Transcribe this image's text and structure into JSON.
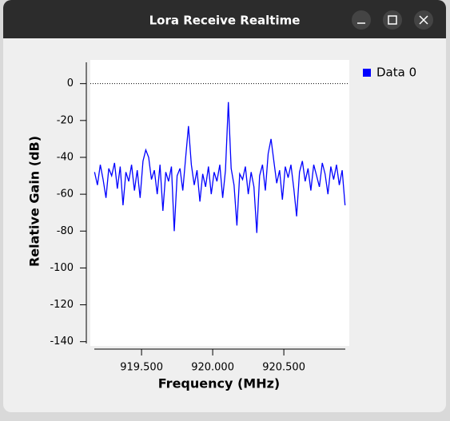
{
  "window": {
    "title": "Lora Receive Realtime"
  },
  "chart_data": {
    "type": "line",
    "xlabel": "Frequency (MHz)",
    "ylabel": "Relative Gain (dB)",
    "x": [
      919.17,
      919.19,
      919.21,
      919.23,
      919.25,
      919.27,
      919.29,
      919.31,
      919.33,
      919.35,
      919.37,
      919.39,
      919.41,
      919.43,
      919.45,
      919.47,
      919.49,
      919.51,
      919.53,
      919.55,
      919.57,
      919.59,
      919.61,
      919.63,
      919.65,
      919.67,
      919.69,
      919.71,
      919.73,
      919.75,
      919.77,
      919.79,
      919.81,
      919.83,
      919.85,
      919.87,
      919.89,
      919.91,
      919.93,
      919.95,
      919.97,
      919.99,
      920.01,
      920.03,
      920.05,
      920.07,
      920.09,
      920.11,
      920.13,
      920.15,
      920.17,
      920.19,
      920.21,
      920.23,
      920.25,
      920.27,
      920.29,
      920.31,
      920.33,
      920.35,
      920.37,
      920.39,
      920.41,
      920.43,
      920.45,
      920.47,
      920.49,
      920.51,
      920.53,
      920.55,
      920.57,
      920.59,
      920.61,
      920.63,
      920.65,
      920.67,
      920.69,
      920.71,
      920.73,
      920.75,
      920.77,
      920.79,
      920.81,
      920.83,
      920.85,
      920.87,
      920.89,
      920.91,
      920.93
    ],
    "series": [
      {
        "name": "Data 0",
        "color": "#0000ff",
        "values": [
          -48,
          -55,
          -44,
          -52,
          -62,
          -46,
          -50,
          -43,
          -57,
          -45,
          -66,
          -48,
          -53,
          -44,
          -58,
          -47,
          -62,
          -42,
          -36,
          -40,
          -52,
          -47,
          -60,
          -44,
          -69,
          -48,
          -53,
          -45,
          -80,
          -50,
          -46,
          -58,
          -40,
          -23,
          -44,
          -55,
          -47,
          -64,
          -49,
          -56,
          -45,
          -60,
          -48,
          -53,
          -44,
          -62,
          -47,
          -10,
          -46,
          -55,
          -77,
          -49,
          -52,
          -45,
          -60,
          -48,
          -56,
          -81,
          -50,
          -44,
          -58,
          -38,
          -30,
          -42,
          -54,
          -47,
          -63,
          -45,
          -51,
          -44,
          -57,
          -72,
          -48,
          -42,
          -53,
          -46,
          -58,
          -44,
          -50,
          -56,
          -43,
          -49,
          -60,
          -45,
          -52,
          -44,
          -55,
          -47,
          -66
        ]
      }
    ],
    "xlim": [
      919.14,
      920.96
    ],
    "xticks": [
      {
        "value": 919.5,
        "label": "919.500"
      },
      {
        "value": 920.0,
        "label": "920.000"
      },
      {
        "value": 920.5,
        "label": "920.500"
      }
    ],
    "ylim": [
      -141,
      12
    ],
    "yticks": [
      -140,
      -120,
      -100,
      -80,
      -60,
      -40,
      -20,
      0
    ],
    "hline": 0,
    "legend": "upper right"
  }
}
